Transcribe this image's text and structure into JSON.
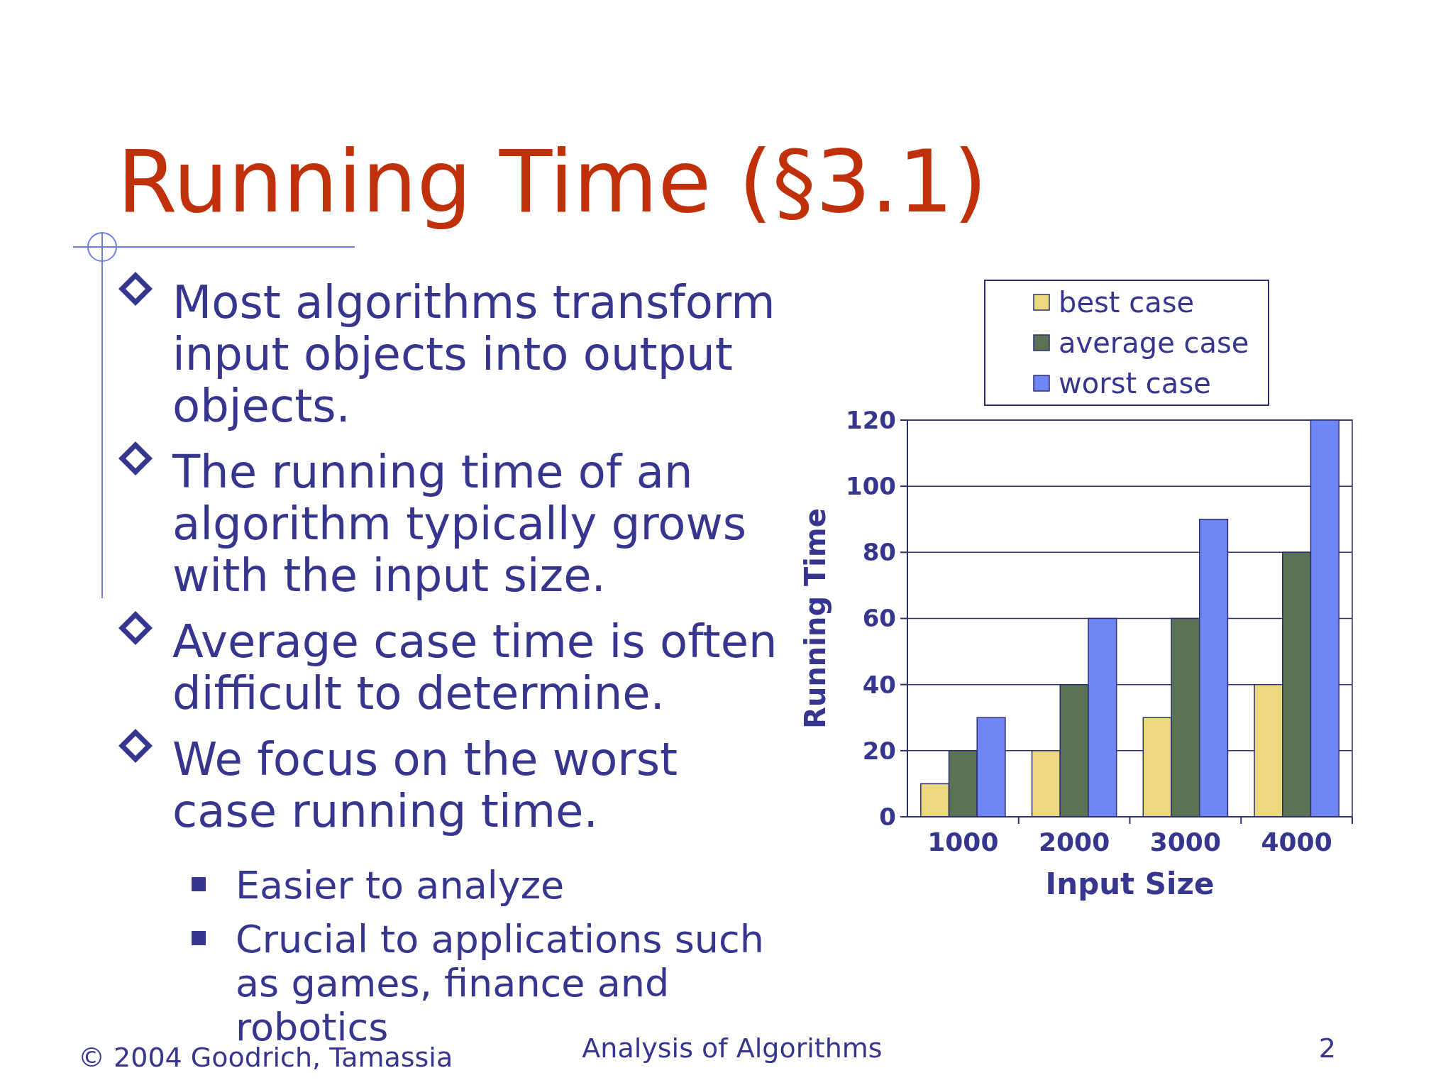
{
  "chart_data": {
    "type": "bar",
    "title": "Running Time (§3.1)",
    "xlabel": "Input Size",
    "ylabel": "Running Time",
    "categories": [
      "1000",
      "2000",
      "3000",
      "4000"
    ],
    "series": [
      {
        "name": "best case",
        "color": "#ecd880",
        "values": [
          10,
          20,
          30,
          40
        ]
      },
      {
        "name": "average case",
        "color": "#5b7254",
        "values": [
          20,
          40,
          60,
          80
        ]
      },
      {
        "name": "worst case",
        "color": "#6f87f4",
        "values": [
          30,
          60,
          90,
          120
        ]
      }
    ],
    "ylim": [
      0,
      120
    ],
    "yticks": [
      0,
      20,
      40,
      60,
      80,
      100,
      120
    ],
    "grid": "y",
    "legend": "top right",
    "annotations": [
      "Most algorithms transform input objects into output objects.",
      "The running time of an algorithm typically grows with the input size.",
      "Average case time is often difficult to determine.",
      "We focus on the worst case running time.",
      "Easier to analyze",
      "Crucial to applications such as games, finance and robotics",
      "© 2004 Goodrich, Tamassia",
      "Analysis of Algorithms",
      "2"
    ]
  }
}
